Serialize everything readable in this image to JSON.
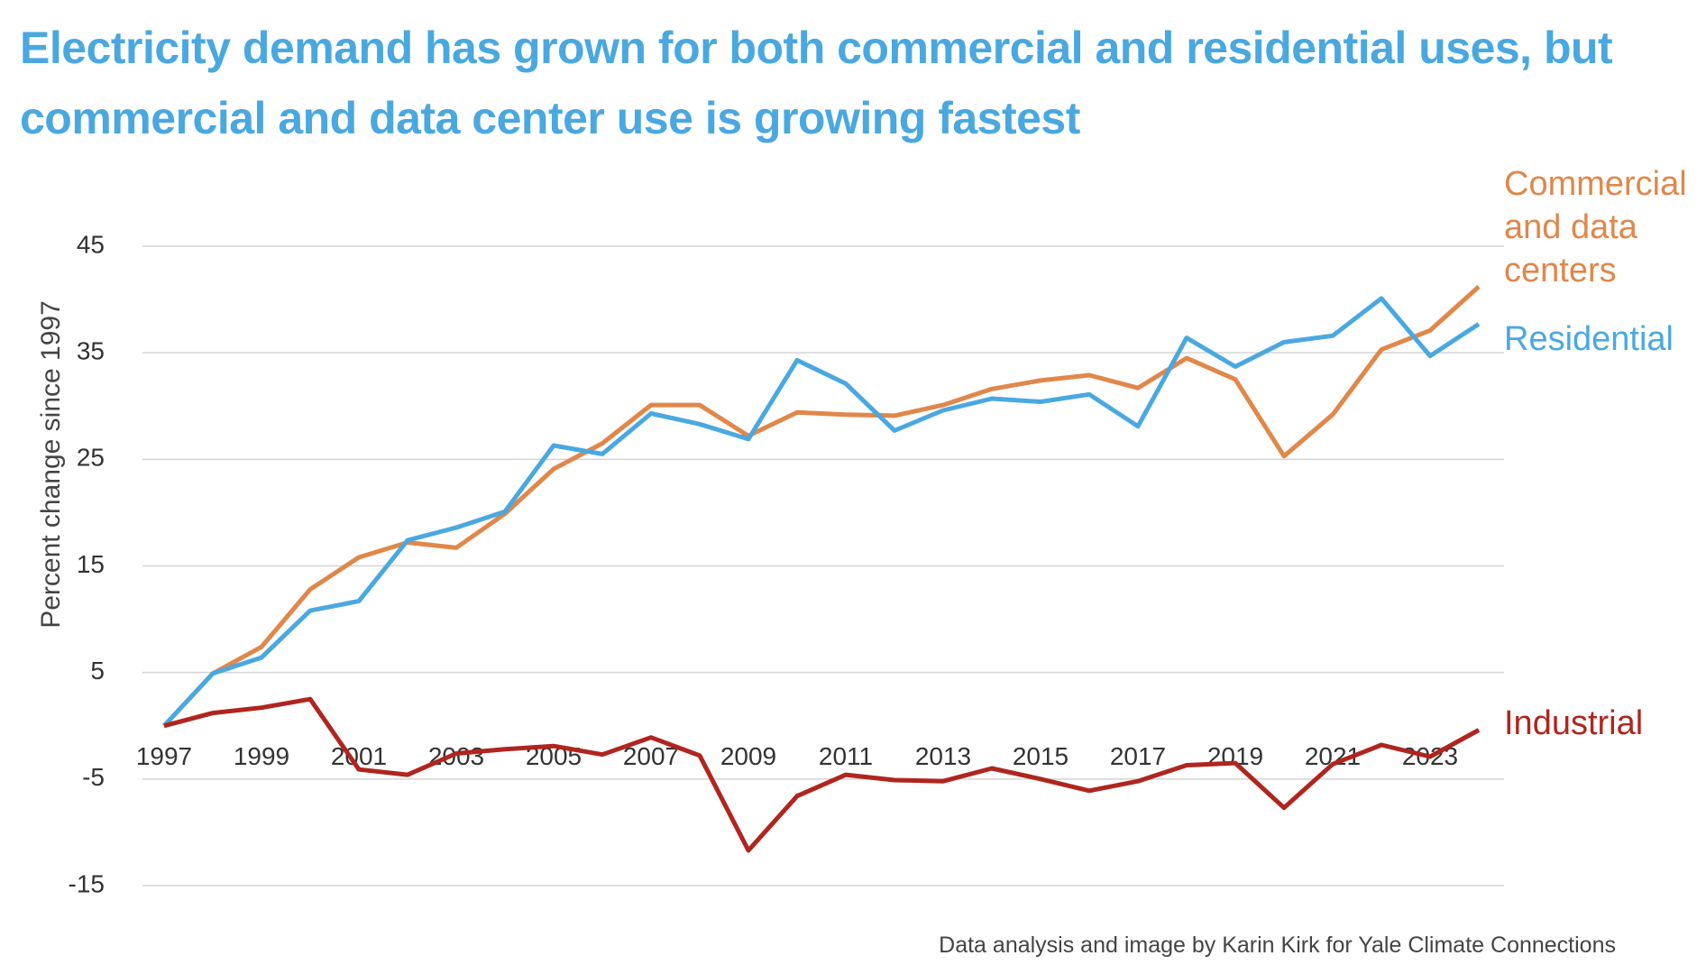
{
  "chart_data": {
    "type": "line",
    "title": "Electricity demand has grown for both commercial and residential uses, but commercial and data center use is growing fastest",
    "y_label": "Percent change since  1997",
    "footer": "Data analysis and image by Karin Kirk for Yale Climate Connections",
    "x": [
      1997,
      1998,
      1999,
      2000,
      2001,
      2002,
      2003,
      2004,
      2005,
      2006,
      2007,
      2008,
      2009,
      2010,
      2011,
      2012,
      2013,
      2014,
      2015,
      2016,
      2017,
      2018,
      2019,
      2020,
      2021,
      2022,
      2023,
      2024
    ],
    "xlim": [
      1997,
      2024
    ],
    "xticks": [
      1997,
      1999,
      2001,
      2003,
      2005,
      2007,
      2009,
      2011,
      2013,
      2015,
      2017,
      2019,
      2021,
      2023
    ],
    "ylim": [
      -15,
      45
    ],
    "yticks": [
      -15,
      -5,
      5,
      15,
      25,
      35,
      45
    ],
    "grid": true,
    "series": [
      {
        "name": "Commercial and data centers",
        "color": "#e0874a",
        "values": [
          0,
          4.9,
          7.4,
          12.8,
          15.8,
          17.2,
          16.7,
          19.9,
          24.1,
          26.5,
          30.1,
          30.1,
          27.2,
          29.4,
          29.2,
          29.1,
          30.1,
          31.6,
          32.4,
          32.9,
          31.7,
          34.5,
          32.5,
          25.3,
          29.2,
          35.3,
          37.1,
          41.2
        ]
      },
      {
        "name": "Residential",
        "color": "#4aa8e0",
        "values": [
          0,
          4.9,
          6.4,
          10.8,
          11.7,
          17.4,
          18.6,
          20.1,
          26.3,
          25.5,
          29.3,
          28.3,
          26.9,
          34.3,
          32.1,
          27.7,
          29.6,
          30.7,
          30.4,
          31.1,
          28.1,
          36.4,
          33.7,
          36.0,
          36.6,
          40.1,
          34.7,
          37.7
        ]
      },
      {
        "name": "Industrial",
        "color": "#b0251e",
        "values": [
          0,
          1.2,
          1.7,
          2.5,
          -4.1,
          -4.6,
          -2.6,
          -2.2,
          -1.9,
          -2.7,
          -1.1,
          -2.8,
          -11.7,
          -6.6,
          -4.6,
          -5.1,
          -5.2,
          -4.0,
          -5.0,
          -6.1,
          -5.2,
          -3.7,
          -3.5,
          -7.7,
          -3.6,
          -1.8,
          -2.9,
          -0.4
        ]
      }
    ]
  }
}
